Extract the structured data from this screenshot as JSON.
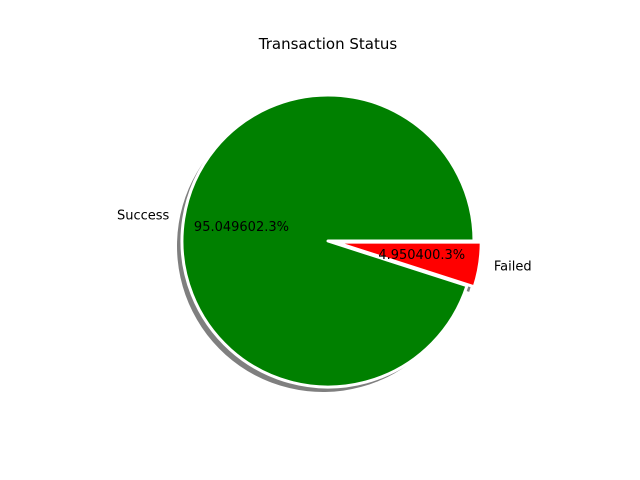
{
  "chart_data": {
    "type": "pie",
    "title": "Transaction Status",
    "slices": [
      {
        "label": "Success",
        "value": 95.049602,
        "pct_label": "95.049602.3%",
        "color": "#008000"
      },
      {
        "label": "Failed",
        "value": 4.9504,
        "pct_label": "4.950400.3%",
        "color": "#ff0000"
      }
    ],
    "start_angle_deg": 0,
    "direction": "counterclockwise",
    "explode": [
      0,
      0.05
    ],
    "shadow": true,
    "edge_color": "#ffffff"
  }
}
